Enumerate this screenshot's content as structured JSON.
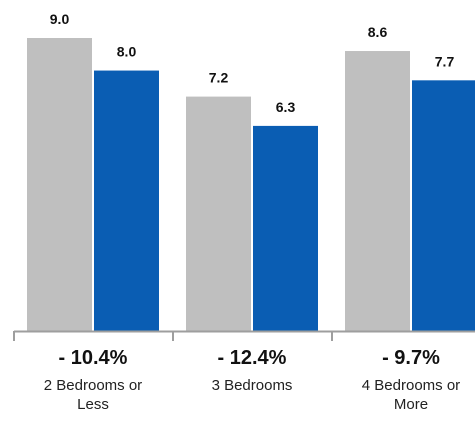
{
  "chart_data": {
    "type": "bar",
    "categories": [
      "2 Bedrooms or Less",
      "3 Bedrooms",
      "4 Bedrooms or More"
    ],
    "category_label_lines": [
      [
        "2 Bedrooms or",
        "Less"
      ],
      [
        "3 Bedrooms"
      ],
      [
        "4 Bedrooms or",
        "More"
      ]
    ],
    "series": [
      {
        "values": [
          9.0,
          7.2,
          8.6
        ],
        "labels": [
          "9.0",
          "7.2",
          "8.6"
        ],
        "color": "#bfbfbf"
      },
      {
        "values": [
          8.0,
          6.3,
          7.7
        ],
        "labels": [
          "8.0",
          "6.3",
          "7.7"
        ],
        "color": "#0a5db3"
      }
    ],
    "change_labels": [
      "- 10.4%",
      "- 12.4%",
      "- 9.7%"
    ],
    "ylim": [
      0,
      9.0
    ],
    "grid": false,
    "legend": "none",
    "axis_color": "#9e9e9e"
  }
}
